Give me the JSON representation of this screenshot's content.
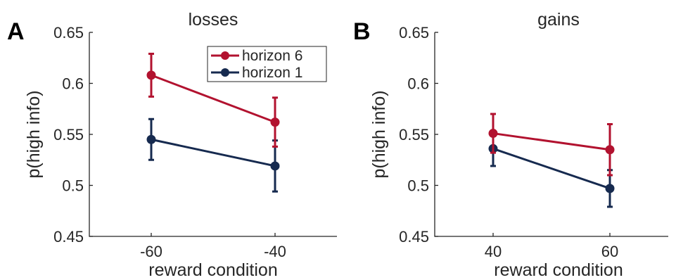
{
  "chart_data": [
    {
      "type": "line",
      "panel_label": "A",
      "title": "losses",
      "xlabel": "reward condition",
      "ylabel": "p(high info)",
      "categories": [
        "-60",
        "-40"
      ],
      "xlim": [
        -70,
        -30
      ],
      "ylim": [
        0.45,
        0.65
      ],
      "yticks": [
        "0.45",
        "0.5",
        "0.55",
        "0.6",
        "0.65"
      ],
      "grid": false,
      "legend_position": "top-right",
      "series": [
        {
          "name": "horizon 6",
          "color": "#b2122f",
          "x": [
            -60,
            -40
          ],
          "values": [
            0.608,
            0.562
          ],
          "err": [
            0.021,
            0.024
          ]
        },
        {
          "name": "horizon 1",
          "color": "#162a4f",
          "x": [
            -60,
            -40
          ],
          "values": [
            0.545,
            0.519
          ],
          "err": [
            0.02,
            0.025
          ]
        }
      ]
    },
    {
      "type": "line",
      "panel_label": "B",
      "title": "gains",
      "xlabel": "reward condition",
      "ylabel": "p(high info)",
      "categories": [
        "40",
        "60"
      ],
      "xlim": [
        30,
        70
      ],
      "ylim": [
        0.45,
        0.65
      ],
      "yticks": [
        "0.45",
        "0.5",
        "0.55",
        "0.6",
        "0.65"
      ],
      "grid": false,
      "series": [
        {
          "name": "horizon 6",
          "color": "#b2122f",
          "x": [
            40,
            60
          ],
          "values": [
            0.551,
            0.535
          ],
          "err": [
            0.019,
            0.025
          ]
        },
        {
          "name": "horizon 1",
          "color": "#162a4f",
          "x": [
            40,
            60
          ],
          "values": [
            0.536,
            0.497
          ],
          "err": [
            0.017,
            0.018
          ]
        }
      ]
    }
  ]
}
